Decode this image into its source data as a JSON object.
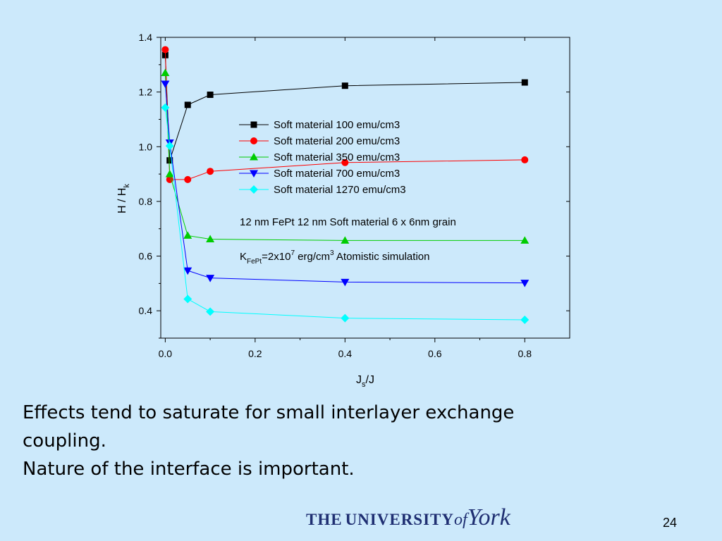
{
  "caption": {
    "line1": "Effects tend to saturate for small interlayer exchange",
    "line2": "coupling.",
    "line3": "Nature of the interface is important."
  },
  "logo": {
    "text_the": "THE",
    "text_university": "UNIVERSITY",
    "text_of": "of",
    "text_york": "York",
    "color": "#1f2f72"
  },
  "page_number": "24",
  "chart_data": {
    "type": "line",
    "title": "",
    "xlabel": "J_s/J",
    "ylabel": "H / H_k",
    "xlim": [
      -0.01,
      0.9
    ],
    "ylim": [
      0.3,
      1.4
    ],
    "xticks": [
      0.0,
      0.2,
      0.4,
      0.6,
      0.8
    ],
    "xtick_labels": [
      "0.0",
      "0.2",
      "0.4",
      "0.6",
      "0.8"
    ],
    "yticks": [
      0.4,
      0.6,
      0.8,
      1.0,
      1.2,
      1.4
    ],
    "ytick_labels": [
      "0.4",
      "0.6",
      "0.8",
      "1.0",
      "1.2",
      "1.4"
    ],
    "grid": false,
    "legend_position": "center-right",
    "x": [
      0.0,
      0.01,
      0.05,
      0.1,
      0.4,
      0.8
    ],
    "series": [
      {
        "name": "Soft material 100 emu/cm3",
        "marker": "square",
        "color": "#000000",
        "values": [
          1.335,
          0.95,
          1.153,
          1.19,
          1.223,
          1.235
        ]
      },
      {
        "name": "Soft material 200 emu/cm3",
        "marker": "circle",
        "color": "#ff0000",
        "values": [
          1.355,
          0.88,
          0.88,
          0.91,
          0.942,
          0.952
        ]
      },
      {
        "name": "Soft material 350 emu/cm3",
        "marker": "triangle-up",
        "color": "#00cc00",
        "values": [
          1.27,
          0.9,
          0.675,
          0.662,
          0.657,
          0.657
        ]
      },
      {
        "name": "Soft material 700 emu/cm3",
        "marker": "triangle-down",
        "color": "#0000ff",
        "values": [
          1.23,
          1.015,
          0.547,
          0.52,
          0.505,
          0.502
        ]
      },
      {
        "name": "Soft material 1270 emu/cm3",
        "marker": "diamond",
        "color": "#00ffff",
        "values": [
          1.143,
          1.003,
          0.443,
          0.397,
          0.373,
          0.367
        ]
      }
    ],
    "annotation1": "12 nm FePt 12 nm Soft material 6 x 6nm grain",
    "annotation2": {
      "k": "K",
      "k_sub": "FePt",
      "eq": "=2x10",
      "exp": "7",
      "unit": " erg/cm",
      "unit_exp": "3",
      "rest": " Atomistic simulation"
    }
  }
}
